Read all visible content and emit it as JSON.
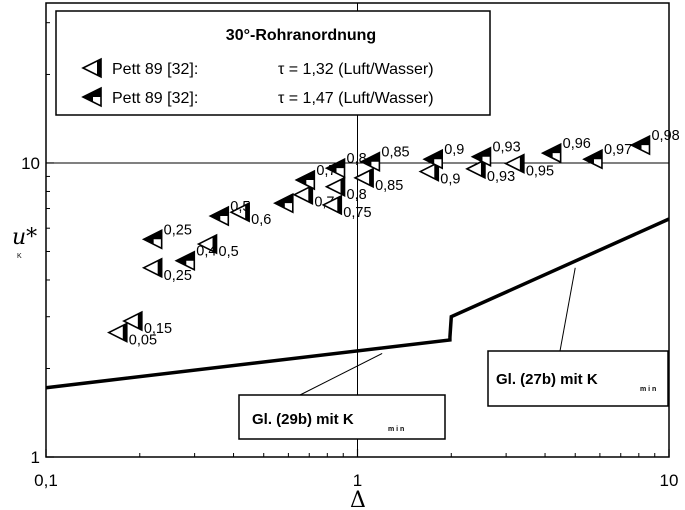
{
  "chart_data": {
    "type": "scatter",
    "title": "30°-Rohranordnung",
    "xlabel": "Δ",
    "ylabel": "u*",
    "ylabel_sub": "K",
    "xscale": "log",
    "yscale": "log",
    "xlim": [
      0.1,
      10
    ],
    "ylim": [
      1,
      35
    ],
    "x_ticks": [
      "0,1",
      "1",
      "10"
    ],
    "y_ticks": [
      "1",
      "10"
    ],
    "grid": "major at 1 and 10",
    "legend": [
      {
        "marker": "open-triangle-left",
        "label": "Pett 89  [32]:",
        "tau": "τ = 1,32 (Luft/Wasser)"
      },
      {
        "marker": "filled-triangle-left",
        "label": "Pett 89  [32]:",
        "tau": "τ = 1,47 (Luft/Wasser)"
      }
    ],
    "series": [
      {
        "name": "τ = 1,32 (Luft/Wasser)",
        "marker": "open",
        "points": [
          {
            "x": 0.17,
            "y": 2.65,
            "label": "0,05"
          },
          {
            "x": 0.19,
            "y": 2.9,
            "label": "0,15"
          },
          {
            "x": 0.22,
            "y": 4.4,
            "label": "0,25"
          },
          {
            "x": 0.33,
            "y": 5.3,
            "label": "0,5"
          },
          {
            "x": 0.42,
            "y": 6.8,
            "label": "0,6"
          },
          {
            "x": 0.67,
            "y": 7.8,
            "label": "0,7"
          },
          {
            "x": 0.83,
            "y": 7.2,
            "label": "0,75"
          },
          {
            "x": 0.85,
            "y": 8.3,
            "label": "0,8"
          },
          {
            "x": 1.05,
            "y": 8.9,
            "label": "0,85"
          },
          {
            "x": 1.7,
            "y": 9.35,
            "label": "0,9"
          },
          {
            "x": 2.4,
            "y": 9.55,
            "label": "0,93"
          },
          {
            "x": 3.2,
            "y": 9.95,
            "label": "0,95"
          }
        ]
      },
      {
        "name": "τ = 1,47 (Luft/Wasser)",
        "marker": "filled",
        "points": [
          {
            "x": 0.22,
            "y": 5.5,
            "label": "0,25"
          },
          {
            "x": 0.28,
            "y": 4.65,
            "label": "0,4"
          },
          {
            "x": 0.36,
            "y": 6.6,
            "label": "0,5"
          },
          {
            "x": 0.58,
            "y": 7.3,
            "label": ""
          },
          {
            "x": 0.68,
            "y": 8.75,
            "label": "0,75"
          },
          {
            "x": 0.85,
            "y": 9.6,
            "label": "0,8"
          },
          {
            "x": 1.1,
            "y": 10.1,
            "label": "0,85"
          },
          {
            "x": 1.75,
            "y": 10.3,
            "label": "0,9"
          },
          {
            "x": 2.5,
            "y": 10.5,
            "label": "0,93"
          },
          {
            "x": 4.2,
            "y": 10.8,
            "label": "0,96"
          },
          {
            "x": 5.7,
            "y": 10.3,
            "label": "0,97"
          },
          {
            "x": 8.1,
            "y": 11.5,
            "label": "0,98"
          }
        ]
      }
    ],
    "curves": [
      {
        "name": "Gl. (29b) mit K",
        "points": [
          [
            0.1,
            1.72
          ],
          [
            1.98,
            2.5
          ],
          [
            1.98,
            2.55
          ]
        ]
      },
      {
        "name": "Gl. (27b) mit K",
        "points": [
          [
            1.98,
            2.55
          ],
          [
            2.0,
            3.0
          ],
          [
            10,
            6.45
          ]
        ]
      }
    ],
    "annotations": [
      {
        "text": "Gl. (29b) mit K",
        "sub": "m i n",
        "points_to": [
          1.2,
          2.25
        ]
      },
      {
        "text": "Gl. (27b) mit K",
        "sub": "m i n",
        "points_to": [
          5.0,
          4.4
        ]
      }
    ]
  }
}
